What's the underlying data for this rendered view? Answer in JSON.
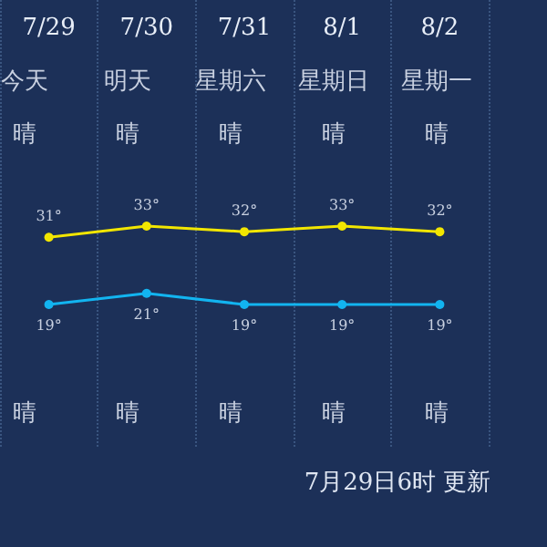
{
  "chart_data": {
    "type": "line",
    "categories": [
      "7/29",
      "7/30",
      "7/31",
      "8/1",
      "8/2"
    ],
    "series": [
      {
        "color": "#f2e600",
        "values": [
          31,
          33,
          32,
          33,
          32
        ],
        "value_labels": [
          "31°",
          "33°",
          "32°",
          "33°",
          "32°"
        ]
      },
      {
        "color": "#12b4f0",
        "values": [
          19,
          21,
          19,
          19,
          19
        ],
        "value_labels": [
          "19°",
          "21°",
          "19°",
          "19°",
          "19°"
        ]
      }
    ],
    "annotations": [
      "今天",
      "明天",
      "星期六",
      "星期日",
      "星期一",
      "晴",
      "晴",
      "晴",
      "晴",
      "晴",
      "晴",
      "晴",
      "晴",
      "晴",
      "晴",
      "7月29日6时 更新"
    ],
    "grid": "x",
    "marker": "circle",
    "line_style": "solid"
  }
}
